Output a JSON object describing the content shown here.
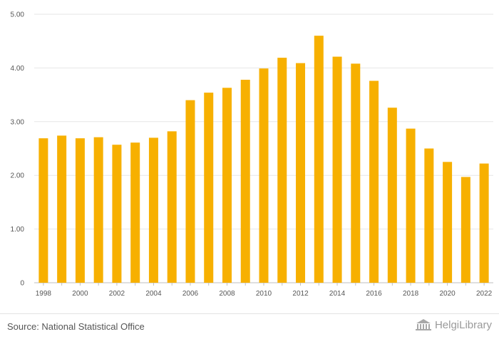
{
  "chart_data": {
    "type": "bar",
    "categories": [
      "1998",
      "1999",
      "2000",
      "2001",
      "2002",
      "2003",
      "2004",
      "2005",
      "2006",
      "2007",
      "2008",
      "2009",
      "2010",
      "2011",
      "2012",
      "2013",
      "2014",
      "2015",
      "2016",
      "2017",
      "2018",
      "2019",
      "2020",
      "2021",
      "2022"
    ],
    "values": [
      2.69,
      2.74,
      2.69,
      2.71,
      2.57,
      2.61,
      2.7,
      2.82,
      3.4,
      3.54,
      3.63,
      3.78,
      3.99,
      4.19,
      4.09,
      4.6,
      4.21,
      4.08,
      3.76,
      3.26,
      2.87,
      2.5,
      2.25,
      1.97,
      2.22
    ],
    "x_tick_labels": [
      "1998",
      "2000",
      "2002",
      "2004",
      "2006",
      "2008",
      "2010",
      "2012",
      "2014",
      "2016",
      "2018",
      "2020",
      "2022"
    ],
    "y_ticks": [
      {
        "value": 0,
        "label": "0"
      },
      {
        "value": 1,
        "label": "1.00"
      },
      {
        "value": 2,
        "label": "2.00"
      },
      {
        "value": 3,
        "label": "3.00"
      },
      {
        "value": 4,
        "label": "4.00"
      },
      {
        "value": 5,
        "label": "5.00"
      }
    ],
    "ylim": [
      0,
      5
    ],
    "grid": true,
    "bar_color": "#f7b000",
    "grid_color": "#e6e6e6"
  },
  "footer": {
    "source": "Source: National Statistical Office",
    "brand": "HelgiLibrary"
  }
}
